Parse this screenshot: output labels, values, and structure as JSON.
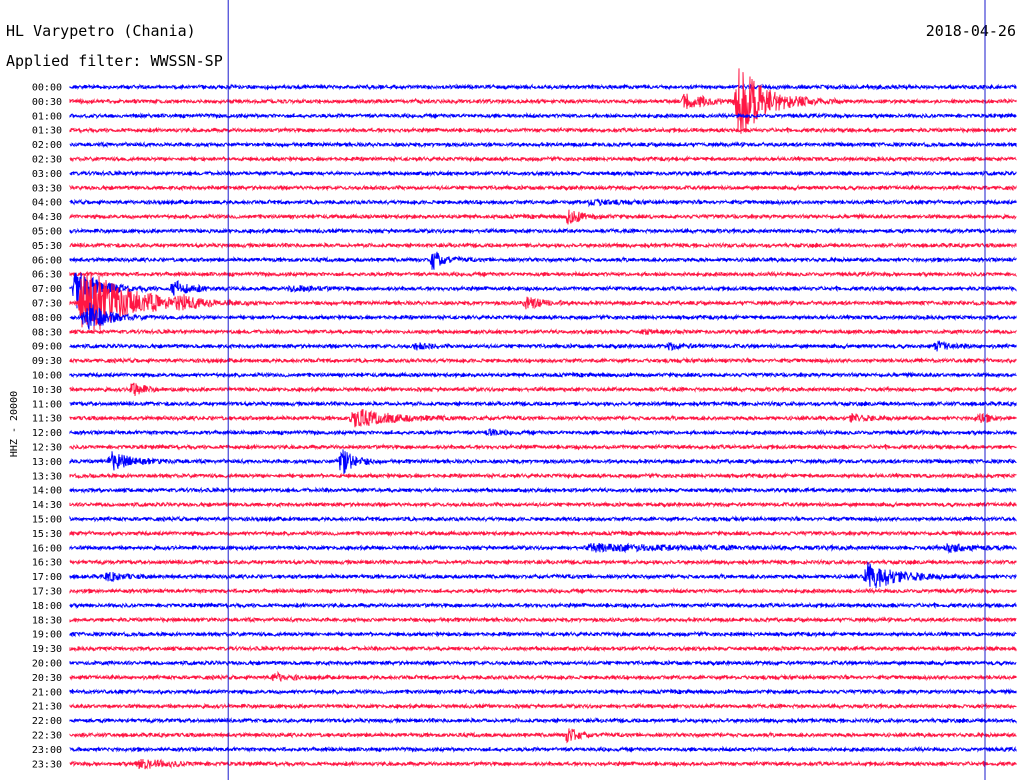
{
  "header": {
    "station": "HL Varypetro (Chania)",
    "date": "2018-04-26",
    "filter": "Applied filter: WWSSN-SP",
    "channel": "HHZ - 20000"
  },
  "colors": {
    "blue": "#0000ff",
    "red": "#ff1744",
    "markers": "#1a1acc"
  },
  "chart_data": {
    "type": "line",
    "title": "HL Varypetro (Chania)",
    "ylabel": "HHZ - 20000",
    "row_labels": [
      "00:00",
      "00:30",
      "01:00",
      "01:30",
      "02:00",
      "02:30",
      "03:00",
      "03:30",
      "04:00",
      "04:30",
      "05:00",
      "05:30",
      "06:00",
      "06:30",
      "07:00",
      "07:30",
      "08:00",
      "08:30",
      "09:00",
      "09:30",
      "10:00",
      "10:30",
      "11:00",
      "11:30",
      "12:00",
      "12:30",
      "13:00",
      "13:30",
      "14:00",
      "14:30",
      "15:00",
      "15:30",
      "16:00",
      "16:30",
      "17:00",
      "17:30",
      "18:00",
      "18:30",
      "19:00",
      "19:30",
      "20:00",
      "20:30",
      "21:00",
      "21:30",
      "22:00",
      "22:30",
      "23:00",
      "23:30"
    ],
    "series_colors": [
      "#0000ff",
      "#ff1744"
    ],
    "minute_markers": [
      5,
      29
    ],
    "events": [
      {
        "row": 1,
        "minute": 19.5,
        "amp": 8,
        "dur": 1.2
      },
      {
        "row": 1,
        "minute": 21.2,
        "amp": 36,
        "dur": 1.5
      },
      {
        "row": 8,
        "minute": 16.5,
        "amp": 3,
        "dur": 1.0
      },
      {
        "row": 9,
        "minute": 15.8,
        "amp": 7,
        "dur": 0.8
      },
      {
        "row": 12,
        "minute": 11.5,
        "amp": 10,
        "dur": 0.6
      },
      {
        "row": 14,
        "minute": 0.2,
        "amp": 20,
        "dur": 1.2
      },
      {
        "row": 14,
        "minute": 3.3,
        "amp": 8,
        "dur": 0.9
      },
      {
        "row": 14,
        "minute": 7.0,
        "amp": 3,
        "dur": 1.2
      },
      {
        "row": 15,
        "minute": 0.4,
        "amp": 38,
        "dur": 2.5
      },
      {
        "row": 15,
        "minute": 3.5,
        "amp": 5,
        "dur": 0.6
      },
      {
        "row": 15,
        "minute": 14.5,
        "amp": 6,
        "dur": 0.8
      },
      {
        "row": 16,
        "minute": 0.5,
        "amp": 18,
        "dur": 1.0
      },
      {
        "row": 17,
        "minute": 18.2,
        "amp": 2,
        "dur": 0.5
      },
      {
        "row": 18,
        "minute": 11.0,
        "amp": 3,
        "dur": 0.6
      },
      {
        "row": 18,
        "minute": 19.0,
        "amp": 3,
        "dur": 0.8
      },
      {
        "row": 18,
        "minute": 27.5,
        "amp": 4,
        "dur": 0.9
      },
      {
        "row": 21,
        "minute": 2.0,
        "amp": 8,
        "dur": 0.5
      },
      {
        "row": 23,
        "minute": 9.0,
        "amp": 9,
        "dur": 2.0
      },
      {
        "row": 23,
        "minute": 24.8,
        "amp": 4,
        "dur": 0.8
      },
      {
        "row": 23,
        "minute": 28.8,
        "amp": 4,
        "dur": 0.8
      },
      {
        "row": 24,
        "minute": 13.3,
        "amp": 3,
        "dur": 0.6
      },
      {
        "row": 26,
        "minute": 1.3,
        "amp": 9,
        "dur": 1.2
      },
      {
        "row": 26,
        "minute": 8.6,
        "amp": 14,
        "dur": 0.7
      },
      {
        "row": 32,
        "minute": 16.5,
        "amp": 3,
        "dur": 6.0
      },
      {
        "row": 32,
        "minute": 27.8,
        "amp": 4,
        "dur": 1.5
      },
      {
        "row": 34,
        "minute": 1.2,
        "amp": 4,
        "dur": 0.8
      },
      {
        "row": 34,
        "minute": 25.3,
        "amp": 14,
        "dur": 1.6
      },
      {
        "row": 41,
        "minute": 6.5,
        "amp": 4,
        "dur": 0.8
      },
      {
        "row": 45,
        "minute": 15.8,
        "amp": 9,
        "dur": 0.5
      },
      {
        "row": 47,
        "minute": 2.2,
        "amp": 5,
        "dur": 1.4
      }
    ]
  }
}
